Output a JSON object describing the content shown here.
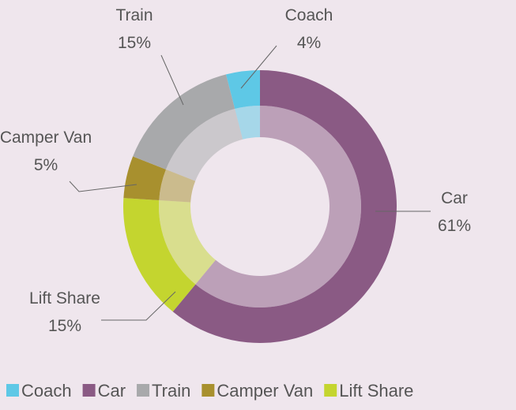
{
  "chart_data": {
    "type": "donut",
    "categories": [
      "Coach",
      "Car",
      "Train",
      "Camper Van",
      "Lift Share"
    ],
    "values": [
      4,
      61,
      15,
      5,
      15
    ],
    "value_labels": [
      "4%",
      "61%",
      "15%",
      "5%",
      "15%"
    ],
    "colors": [
      "#5ec8e6",
      "#8a5a84",
      "#a8a9ab",
      "#a8902e",
      "#c4d52f"
    ],
    "legend": "bottom"
  }
}
